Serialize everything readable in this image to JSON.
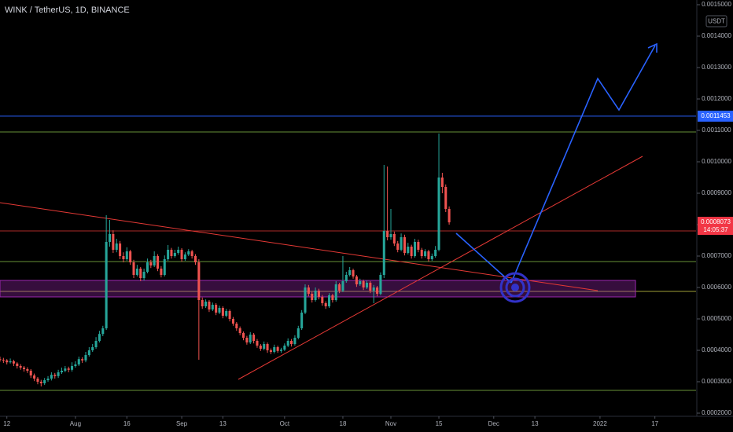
{
  "chart_data": {
    "type": "candlestick",
    "title": "WINK / TetherUS, 1D, BINANCE",
    "currency": "USDT",
    "up_color": "#26a69a",
    "down_color": "#ef5350",
    "xlim": [
      0,
      203
    ],
    "xticks": [
      {
        "value": 2,
        "label": "12"
      },
      {
        "value": 22,
        "label": "Aug"
      },
      {
        "value": 37,
        "label": "16"
      },
      {
        "value": 53,
        "label": "Sep"
      },
      {
        "value": 65,
        "label": "13"
      },
      {
        "value": 83,
        "label": "Oct"
      },
      {
        "value": 100,
        "label": "18"
      },
      {
        "value": 114,
        "label": "Nov"
      },
      {
        "value": 128,
        "label": "15"
      },
      {
        "value": 144,
        "label": "Dec"
      },
      {
        "value": 156,
        "label": "13"
      },
      {
        "value": 175,
        "label": "2022"
      },
      {
        "value": 191,
        "label": "17"
      }
    ],
    "ylim": [
      0.00019,
      0.001515
    ],
    "yticks": [
      {
        "value": 0.0002,
        "label": "0.0002000"
      },
      {
        "value": 0.0003,
        "label": "0.0003000"
      },
      {
        "value": 0.0004,
        "label": "0.0004000"
      },
      {
        "value": 0.0005,
        "label": "0.0005000"
      },
      {
        "value": 0.0006,
        "label": "0.0006000"
      },
      {
        "value": 0.0007,
        "label": "0.0007000"
      },
      {
        "value": 0.0008,
        "label": "0.0008000"
      },
      {
        "value": 0.0009,
        "label": "0.0009000"
      },
      {
        "value": 0.001,
        "label": "0.0010000"
      },
      {
        "value": 0.0011,
        "label": "0.0011000"
      },
      {
        "value": 0.0012,
        "label": "0.0012000"
      },
      {
        "value": 0.0013,
        "label": "0.0013000"
      },
      {
        "value": 0.0014,
        "label": "0.0014000"
      },
      {
        "value": 0.0015,
        "label": "0.0015000"
      }
    ],
    "price_lines": [
      {
        "value": 0.0011453,
        "color": "#2962ff"
      }
    ],
    "last_price": {
      "value": 0.0008073,
      "countdown": "14:05:37",
      "color": "#f23645"
    },
    "candles": [
      [
        0.000372,
        0.00038,
        0.000364,
        0.00037
      ],
      [
        0.00037,
        0.000376,
        0.00036,
        0.000368
      ],
      [
        0.000368,
        0.000372,
        0.000355,
        0.000362
      ],
      [
        0.000362,
        0.000374,
        0.000358,
        0.000365
      ],
      [
        0.000365,
        0.00037,
        0.00035,
        0.000358
      ],
      [
        0.000358,
        0.000362,
        0.000342,
        0.00035
      ],
      [
        0.00035,
        0.000356,
        0.000338,
        0.000345
      ],
      [
        0.000345,
        0.00035,
        0.000332,
        0.00034
      ],
      [
        0.00034,
        0.000346,
        0.000328,
        0.000335
      ],
      [
        0.000335,
        0.00034,
        0.000312,
        0.00032
      ],
      [
        0.00032,
        0.000326,
        0.000302,
        0.00031
      ],
      [
        0.00031,
        0.000315,
        0.000292,
        0.0003
      ],
      [
        0.0003,
        0.000306,
        0.000285,
        0.000295
      ],
      [
        0.000295,
        0.000312,
        0.00029,
        0.000305
      ],
      [
        0.000305,
        0.000318,
        0.0003,
        0.00031
      ],
      [
        0.00031,
        0.00033,
        0.000304,
        0.000322
      ],
      [
        0.000322,
        0.000328,
        0.00031,
        0.000318
      ],
      [
        0.000318,
        0.000338,
        0.000312,
        0.00033
      ],
      [
        0.00033,
        0.000345,
        0.000325,
        0.000335
      ],
      [
        0.000335,
        0.00035,
        0.00033,
        0.000342
      ],
      [
        0.000342,
        0.000348,
        0.00033,
        0.000338
      ],
      [
        0.000338,
        0.000362,
        0.000332,
        0.00035
      ],
      [
        0.00035,
        0.000365,
        0.000345,
        0.000355
      ],
      [
        0.000355,
        0.00038,
        0.00035,
        0.000372
      ],
      [
        0.000372,
        0.000378,
        0.00036,
        0.000368
      ],
      [
        0.000368,
        0.000395,
        0.000362,
        0.000385
      ],
      [
        0.000385,
        0.00041,
        0.00038,
        0.0004
      ],
      [
        0.0004,
        0.00042,
        0.000395,
        0.00041
      ],
      [
        0.00041,
        0.000442,
        0.000405,
        0.00043
      ],
      [
        0.00043,
        0.000462,
        0.000425,
        0.000452
      ],
      [
        0.000452,
        0.000478,
        0.000445,
        0.00047
      ],
      [
        0.00047,
        0.00083,
        0.000465,
        0.000745
      ],
      [
        0.000745,
        0.000815,
        0.00073,
        0.00077
      ],
      [
        0.00077,
        0.000782,
        0.00071,
        0.00072
      ],
      [
        0.00072,
        0.000755,
        0.000712,
        0.00074
      ],
      [
        0.00074,
        0.000748,
        0.00069,
        0.0007
      ],
      [
        0.0007,
        0.000712,
        0.00068,
        0.00069
      ],
      [
        0.00069,
        0.000728,
        0.000685,
        0.000715
      ],
      [
        0.000715,
        0.00072,
        0.000672,
        0.00068
      ],
      [
        0.00068,
        0.000688,
        0.00063,
        0.00064
      ],
      [
        0.00064,
        0.000672,
        0.000635,
        0.00066
      ],
      [
        0.00066,
        0.000665,
        0.00062,
        0.00063
      ],
      [
        0.00063,
        0.00066,
        0.000622,
        0.00065
      ],
      [
        0.00065,
        0.000692,
        0.000645,
        0.00068
      ],
      [
        0.00068,
        0.000688,
        0.000662,
        0.00067
      ],
      [
        0.00067,
        0.000715,
        0.000665,
        0.0007
      ],
      [
        0.0007,
        0.000706,
        0.000652,
        0.00066
      ],
      [
        0.00066,
        0.000668,
        0.000632,
        0.00064
      ],
      [
        0.00064,
        0.000702,
        0.000635,
        0.00069
      ],
      [
        0.00069,
        0.000735,
        0.000685,
        0.00072
      ],
      [
        0.00072,
        0.000726,
        0.000692,
        0.0007
      ],
      [
        0.0007,
        0.00072,
        0.000695,
        0.00071
      ],
      [
        0.00071,
        0.00073,
        0.000704,
        0.00072
      ],
      [
        0.00072,
        0.000725,
        0.000682,
        0.00069
      ],
      [
        0.00069,
        0.000712,
        0.000685,
        0.000705
      ],
      [
        0.000705,
        0.000722,
        0.0007,
        0.000715
      ],
      [
        0.000715,
        0.00072,
        0.000692,
        0.0007
      ],
      [
        0.0007,
        0.000706,
        0.000672,
        0.00068
      ],
      [
        0.00068,
        0.00069,
        0.00037,
        0.00056
      ],
      [
        0.00056,
        0.000568,
        0.000532,
        0.00054
      ],
      [
        0.00054,
        0.000562,
        0.000535,
        0.000555
      ],
      [
        0.000555,
        0.00056,
        0.000522,
        0.00053
      ],
      [
        0.00053,
        0.000552,
        0.000525,
        0.000545
      ],
      [
        0.000545,
        0.00055,
        0.000512,
        0.00052
      ],
      [
        0.00052,
        0.000542,
        0.000515,
        0.000535
      ],
      [
        0.000535,
        0.00054,
        0.000502,
        0.00051
      ],
      [
        0.00051,
        0.000532,
        0.000505,
        0.000525
      ],
      [
        0.000525,
        0.00053,
        0.000492,
        0.0005
      ],
      [
        0.0005,
        0.000506,
        0.000478,
        0.000485
      ],
      [
        0.000485,
        0.00049,
        0.000462,
        0.00047
      ],
      [
        0.00047,
        0.000476,
        0.000448,
        0.000455
      ],
      [
        0.000455,
        0.00046,
        0.000432,
        0.00044
      ],
      [
        0.00044,
        0.000446,
        0.000418,
        0.000425
      ],
      [
        0.000425,
        0.000458,
        0.00042,
        0.00045
      ],
      [
        0.00045,
        0.000455,
        0.000422,
        0.00043
      ],
      [
        0.00043,
        0.000436,
        0.000408,
        0.000415
      ],
      [
        0.000415,
        0.00042,
        0.000398,
        0.000405
      ],
      [
        0.000405,
        0.000428,
        0.0004,
        0.00042
      ],
      [
        0.00042,
        0.000425,
        0.000392,
        0.0004
      ],
      [
        0.0004,
        0.000406,
        0.000388,
        0.000395
      ],
      [
        0.000395,
        0.000418,
        0.00039,
        0.00041
      ],
      [
        0.00041,
        0.000415,
        0.000392,
        0.000398
      ],
      [
        0.000398,
        0.000408,
        0.000392,
        0.000402
      ],
      [
        0.000402,
        0.000422,
        0.000398,
        0.000415
      ],
      [
        0.000415,
        0.000438,
        0.00041,
        0.00043
      ],
      [
        0.00043,
        0.000436,
        0.000412,
        0.00042
      ],
      [
        0.00042,
        0.000448,
        0.000415,
        0.00044
      ],
      [
        0.00044,
        0.000478,
        0.000435,
        0.00047
      ],
      [
        0.00047,
        0.000528,
        0.000465,
        0.00052
      ],
      [
        0.00052,
        0.00061,
        0.000515,
        0.0006
      ],
      [
        0.0006,
        0.000608,
        0.000572,
        0.00058
      ],
      [
        0.00058,
        0.000586,
        0.000552,
        0.00056
      ],
      [
        0.00056,
        0.0006,
        0.000555,
        0.00059
      ],
      [
        0.00059,
        0.000596,
        0.000562,
        0.00057
      ],
      [
        0.00057,
        0.000576,
        0.000542,
        0.00055
      ],
      [
        0.00055,
        0.000556,
        0.000532,
        0.00054
      ],
      [
        0.00054,
        0.000582,
        0.000535,
        0.000575
      ],
      [
        0.000575,
        0.00058,
        0.000552,
        0.00056
      ],
      [
        0.00056,
        0.00062,
        0.000555,
        0.00061
      ],
      [
        0.00061,
        0.000615,
        0.000582,
        0.00059
      ],
      [
        0.00059,
        0.0007,
        0.000585,
        0.00062
      ],
      [
        0.00062,
        0.00065,
        0.000615,
        0.00064
      ],
      [
        0.00064,
        0.000665,
        0.000635,
        0.000655
      ],
      [
        0.000655,
        0.00066,
        0.000628,
        0.000635
      ],
      [
        0.000635,
        0.00064,
        0.000602,
        0.00061
      ],
      [
        0.00061,
        0.000628,
        0.000605,
        0.00062
      ],
      [
        0.00062,
        0.000625,
        0.000592,
        0.0006
      ],
      [
        0.0006,
        0.000622,
        0.000595,
        0.000615
      ],
      [
        0.000615,
        0.00062,
        0.000582,
        0.00059
      ],
      [
        0.00059,
        0.000608,
        0.00055,
        0.0006
      ],
      [
        0.0006,
        0.000605,
        0.000572,
        0.00058
      ],
      [
        0.00058,
        0.000648,
        0.000575,
        0.00064
      ],
      [
        0.00064,
        0.00099,
        0.00063,
        0.00078
      ],
      [
        0.00078,
        0.000985,
        0.00075,
        0.00076
      ],
      [
        0.00076,
        0.00085,
        0.000752,
        0.00077
      ],
      [
        0.00077,
        0.000778,
        0.000732,
        0.00074
      ],
      [
        0.00074,
        0.000748,
        0.000712,
        0.00072
      ],
      [
        0.00072,
        0.000772,
        0.000715,
        0.00076
      ],
      [
        0.00076,
        0.000768,
        0.000702,
        0.00071
      ],
      [
        0.00071,
        0.000742,
        0.000705,
        0.00073
      ],
      [
        0.00073,
        0.000736,
        0.000692,
        0.0007
      ],
      [
        0.0007,
        0.000755,
        0.000695,
        0.000745
      ],
      [
        0.000745,
        0.000752,
        0.000712,
        0.00072
      ],
      [
        0.00072,
        0.000726,
        0.000692,
        0.0007
      ],
      [
        0.0007,
        0.000722,
        0.000695,
        0.000715
      ],
      [
        0.000715,
        0.00072,
        0.000682,
        0.00069
      ],
      [
        0.00069,
        0.000708,
        0.000685,
        0.0007
      ],
      [
        0.0007,
        0.000732,
        0.000695,
        0.00072
      ],
      [
        0.00072,
        0.00109,
        0.000715,
        0.00095
      ],
      [
        0.00095,
        0.000965,
        0.0009,
        0.00092
      ],
      [
        0.00092,
        0.000928,
        0.00084,
        0.00085
      ],
      [
        0.00085,
        0.000858,
        0.0008,
        0.0008073
      ]
    ]
  }
}
